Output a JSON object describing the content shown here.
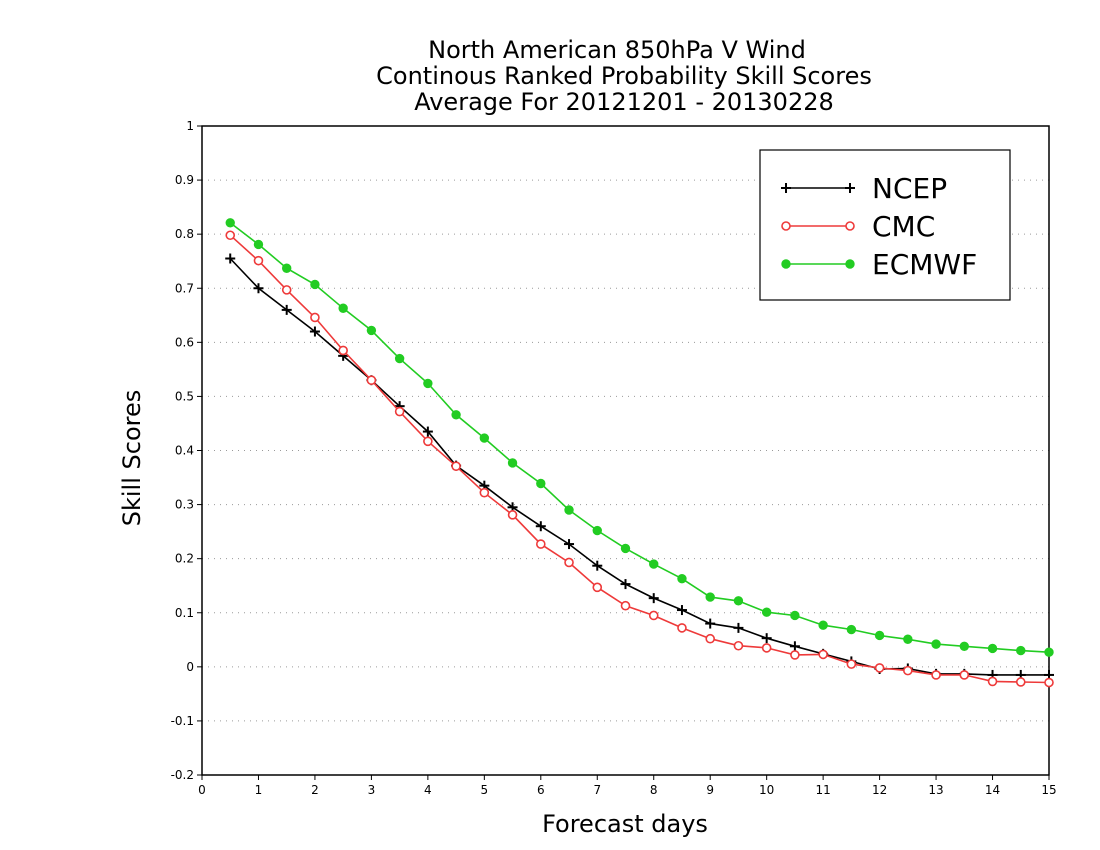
{
  "chart_data": {
    "type": "line",
    "title": "North American 850hPa V Wind",
    "subtitle_lines": [
      "Continous Ranked Probability Skill Scores",
      "Average For 20121201 - 20130228"
    ],
    "xlabel": "Forecast days",
    "ylabel": "Skill Scores",
    "xlim": [
      0,
      15
    ],
    "ylim": [
      -0.2,
      1
    ],
    "x_ticks": [
      0,
      1,
      2,
      3,
      4,
      5,
      6,
      7,
      8,
      9,
      10,
      11,
      12,
      13,
      14,
      15
    ],
    "x_tick_labels": [
      "0",
      "1",
      "2",
      "3",
      "4",
      "5",
      "6",
      "7",
      "8",
      "9",
      "10",
      "11",
      "12",
      "13",
      "14",
      "15"
    ],
    "y_ticks": [
      -0.2,
      -0.1,
      0,
      0.1,
      0.2,
      0.3,
      0.4,
      0.5,
      0.6,
      0.7,
      0.8,
      0.9,
      1
    ],
    "y_tick_labels": [
      "-0.2",
      "-0.1",
      "0",
      "0.1",
      "0.2",
      "0.3",
      "0.4",
      "0.5",
      "0.6",
      "0.7",
      "0.8",
      "0.9",
      "1"
    ],
    "grid": "horizontal dotted",
    "legend_position": "top-right",
    "x": [
      0.5,
      1,
      1.5,
      2,
      2.5,
      3,
      3.5,
      4,
      4.5,
      5,
      5.5,
      6,
      6.5,
      7,
      7.5,
      8,
      8.5,
      9,
      9.5,
      10,
      10.5,
      11,
      11.5,
      12,
      12.5,
      13,
      13.5,
      14,
      14.5,
      15
    ],
    "series": [
      {
        "name": "NCEP",
        "color": "#000000",
        "marker": "plus",
        "values": [
          0.755,
          0.7,
          0.66,
          0.62,
          0.575,
          0.53,
          0.482,
          0.435,
          0.372,
          0.335,
          0.295,
          0.26,
          0.227,
          0.187,
          0.153,
          0.127,
          0.105,
          0.08,
          0.072,
          0.053,
          0.038,
          0.024,
          0.01,
          -0.004,
          -0.003,
          -0.013,
          -0.013,
          -0.015,
          -0.015,
          -0.015
        ]
      },
      {
        "name": "CMC",
        "color": "#ee3a3a",
        "marker": "open-circle",
        "values": [
          0.798,
          0.751,
          0.697,
          0.646,
          0.585,
          0.53,
          0.472,
          0.417,
          0.371,
          0.322,
          0.281,
          0.227,
          0.193,
          0.147,
          0.113,
          0.095,
          0.072,
          0.052,
          0.039,
          0.035,
          0.022,
          0.023,
          0.005,
          -0.002,
          -0.007,
          -0.015,
          -0.015,
          -0.027,
          -0.028,
          -0.029
        ]
      },
      {
        "name": "ECMWF",
        "color": "#22cc22",
        "marker": "filled-circle",
        "values": [
          0.821,
          0.781,
          0.737,
          0.707,
          0.663,
          0.622,
          0.57,
          0.524,
          0.466,
          0.423,
          0.377,
          0.339,
          0.29,
          0.252,
          0.219,
          0.19,
          0.163,
          0.129,
          0.122,
          0.101,
          0.095,
          0.077,
          0.069,
          0.058,
          0.051,
          0.042,
          0.038,
          0.034,
          0.03,
          0.027
        ]
      }
    ]
  }
}
